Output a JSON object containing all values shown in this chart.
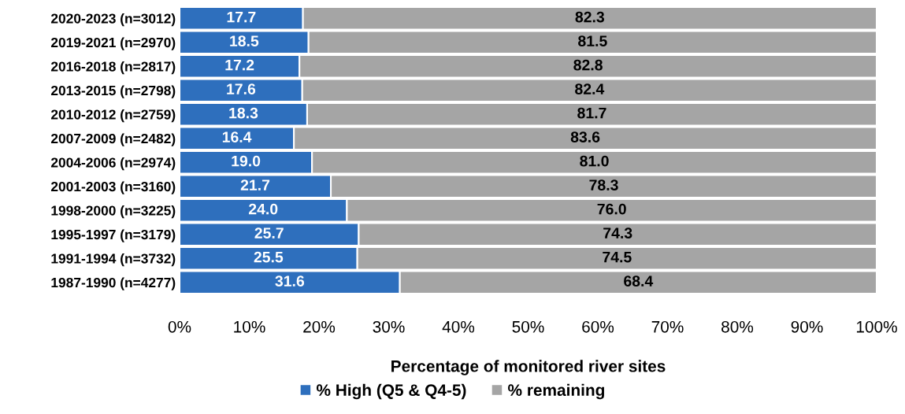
{
  "chart_data": {
    "type": "bar",
    "orientation": "horizontal",
    "stacked": true,
    "xlabel": "Percentage of monitored river sites",
    "categories": [
      "2020-2023 (n=3012)",
      "2019-2021 (n=2970)",
      "2016-2018 (n=2817)",
      "2013-2015 (n=2798)",
      "2010-2012 (n=2759)",
      "2007-2009 (n=2482)",
      "2004-2006 (n=2974)",
      "2001-2003 (n=3160)",
      "1998-2000 (n=3225)",
      "1995-1997 (n=3179)",
      "1991-1994 (n=3732)",
      "1987-1990 (n=4277)"
    ],
    "series": [
      {
        "name": "% High (Q5 & Q4-5)",
        "color": "#2e6fbd",
        "values": [
          17.7,
          18.5,
          17.2,
          17.6,
          18.3,
          16.4,
          19.0,
          21.7,
          24.0,
          25.7,
          25.5,
          31.6
        ],
        "value_labels": [
          "17.7",
          "18.5",
          "17.2",
          "17.6",
          "18.3",
          "16.4",
          "19.0",
          "21.7",
          "24.0",
          "25.7",
          "25.5",
          "31.6"
        ]
      },
      {
        "name": "% remaining",
        "color": "#a5a5a5",
        "values": [
          82.3,
          81.5,
          82.8,
          82.4,
          81.7,
          83.6,
          81.0,
          78.3,
          76.0,
          74.3,
          74.5,
          68.4
        ],
        "value_labels": [
          "82.3",
          "81.5",
          "82.8",
          "82.4",
          "81.7",
          "83.6",
          "81.0",
          "78.3",
          "76.0",
          "74.3",
          "74.5",
          "68.4"
        ]
      }
    ],
    "xlim": [
      0,
      100
    ],
    "xticks": [
      {
        "value": 0,
        "label": "0%"
      },
      {
        "value": 10,
        "label": "10%"
      },
      {
        "value": 20,
        "label": "20%"
      },
      {
        "value": 30,
        "label": "30%"
      },
      {
        "value": 40,
        "label": "40%"
      },
      {
        "value": 50,
        "label": "50%"
      },
      {
        "value": 60,
        "label": "60%"
      },
      {
        "value": 70,
        "label": "70%"
      },
      {
        "value": 80,
        "label": "80%"
      },
      {
        "value": 90,
        "label": "90%"
      },
      {
        "value": 100,
        "label": "100%"
      }
    ],
    "grid": false,
    "legend": "bottom"
  }
}
